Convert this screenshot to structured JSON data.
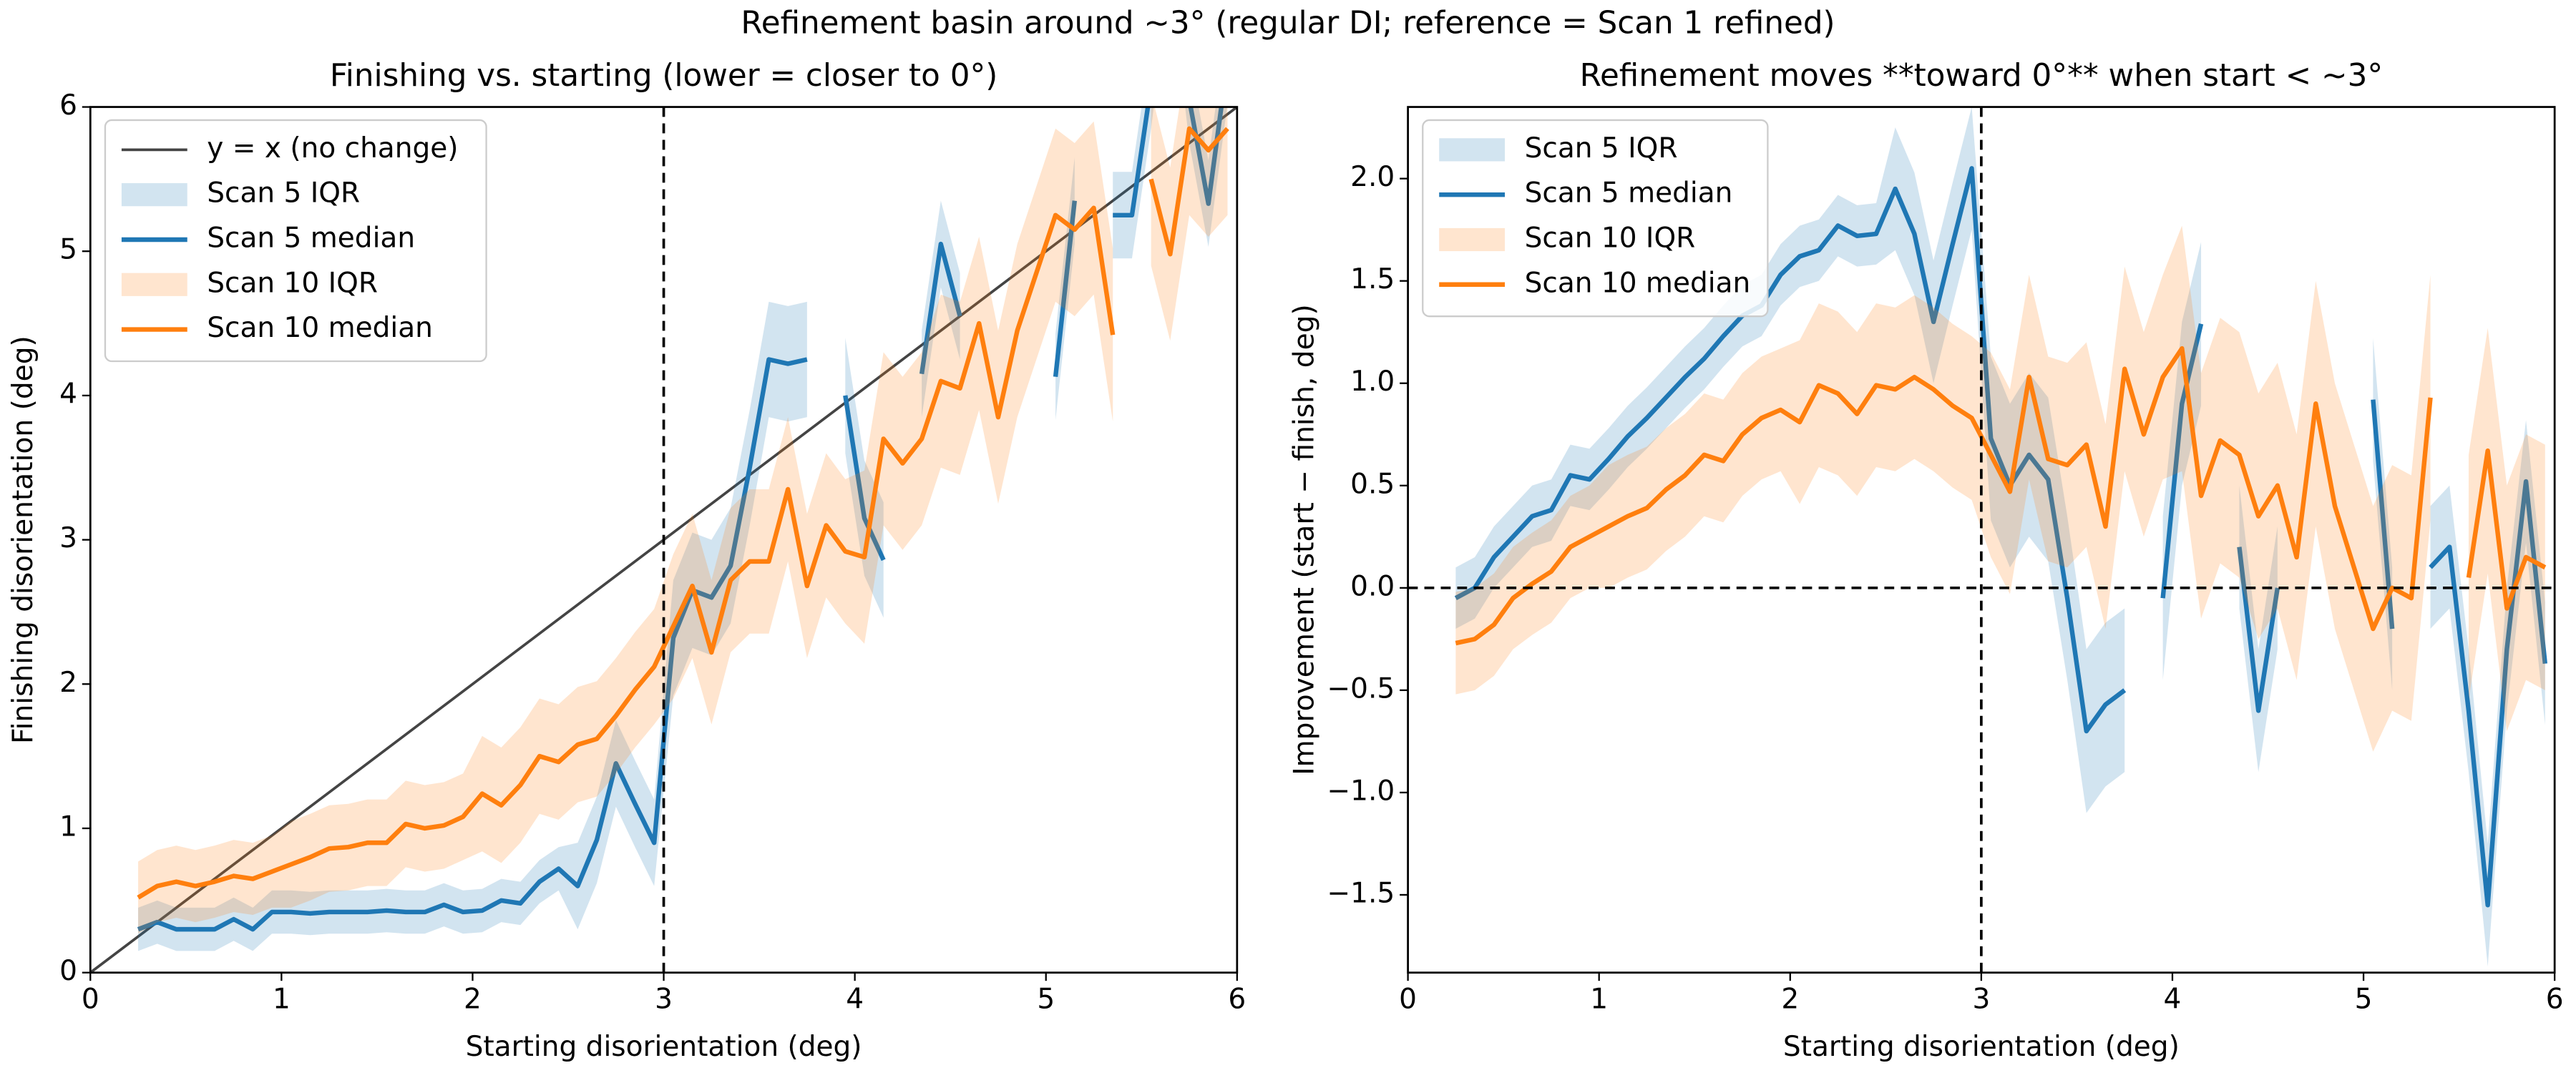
{
  "title": "Refinement basin around ~3° (regular DI; reference = Scan 1 refined)",
  "chart_data": [
    {
      "type": "line",
      "title": "Finishing vs. starting (lower = closer to 0°)",
      "xlabel": "Starting disorientation (deg)",
      "ylabel": "Finishing disorientation (deg)",
      "xlim": [
        0,
        6
      ],
      "ylim": [
        0,
        6
      ],
      "xticks": [
        0,
        1,
        2,
        3,
        4,
        5,
        6
      ],
      "yticks": [
        0,
        1,
        2,
        3,
        4,
        5,
        6
      ],
      "legend": "upper left",
      "vlines": [
        3
      ],
      "hlines": [],
      "x": [
        0.25,
        0.35,
        0.45,
        0.55,
        0.65,
        0.75,
        0.85,
        0.95,
        1.05,
        1.15,
        1.25,
        1.35,
        1.45,
        1.55,
        1.65,
        1.75,
        1.85,
        1.95,
        2.05,
        2.15,
        2.25,
        2.35,
        2.45,
        2.55,
        2.65,
        2.75,
        2.85,
        2.95,
        3.05,
        3.15,
        3.25,
        3.35,
        3.45,
        3.55,
        3.65,
        3.75,
        3.85,
        3.95,
        4.05,
        4.15,
        4.25,
        4.35,
        4.45,
        4.55,
        4.65,
        4.75,
        4.85,
        4.95,
        5.05,
        5.15,
        5.25,
        5.35,
        5.45,
        5.55,
        5.65,
        5.75,
        5.85,
        5.95
      ],
      "series": [
        {
          "name": "y = x (no change)",
          "color": "#444444",
          "x": [
            0,
            6
          ],
          "values": [
            0,
            6
          ]
        },
        {
          "name": "Scan 5 IQR",
          "kind": "band",
          "color": "#1f77b4",
          "low": [
            0.15,
            0.2,
            0.15,
            0.15,
            0.15,
            0.22,
            0.15,
            0.27,
            0.27,
            0.26,
            0.27,
            0.27,
            0.27,
            0.28,
            0.27,
            0.27,
            0.32,
            0.27,
            0.28,
            0.35,
            0.33,
            0.48,
            0.57,
            0.3,
            0.62,
            1.15,
            0.87,
            0.6,
            1.92,
            2.25,
            2.2,
            2.42,
            3.1,
            3.85,
            3.82,
            3.85,
            null,
            3.6,
            2.75,
            2.46,
            null,
            3.85,
            4.75,
            4.25,
            null,
            null,
            null,
            null,
            3.83,
            5.05,
            null,
            4.95,
            4.95,
            5.85,
            6.9,
            5.75,
            5.03,
            6.02
          ],
          "high": [
            0.45,
            0.5,
            0.45,
            0.45,
            0.45,
            0.52,
            0.45,
            0.57,
            0.57,
            0.56,
            0.57,
            0.57,
            0.57,
            0.58,
            0.57,
            0.57,
            0.62,
            0.57,
            0.58,
            0.65,
            0.63,
            0.78,
            0.87,
            0.9,
            1.22,
            1.75,
            1.47,
            1.2,
            2.72,
            3.05,
            3.0,
            3.22,
            3.9,
            4.65,
            4.62,
            4.65,
            null,
            4.4,
            3.55,
            3.26,
            null,
            4.45,
            5.35,
            4.85,
            null,
            null,
            null,
            null,
            4.43,
            5.65,
            null,
            5.55,
            5.55,
            6.45,
            7.5,
            6.35,
            5.63,
            6.62
          ]
        },
        {
          "name": "Scan 5 median",
          "color": "#1f77b4",
          "values": [
            0.3,
            0.35,
            0.3,
            0.3,
            0.3,
            0.37,
            0.3,
            0.42,
            0.42,
            0.41,
            0.42,
            0.42,
            0.42,
            0.43,
            0.42,
            0.42,
            0.47,
            0.42,
            0.43,
            0.5,
            0.48,
            0.63,
            0.72,
            0.6,
            0.92,
            1.45,
            1.17,
            0.9,
            2.32,
            2.65,
            2.6,
            2.82,
            3.5,
            4.25,
            4.22,
            4.25,
            null,
            4.0,
            3.15,
            2.86,
            null,
            4.15,
            5.05,
            4.55,
            null,
            null,
            null,
            null,
            4.13,
            5.35,
            null,
            5.25,
            5.25,
            6.15,
            7.2,
            6.05,
            5.33,
            6.32
          ]
        },
        {
          "name": "Scan 10 IQR",
          "kind": "band",
          "color": "#ff7f0e",
          "low": [
            0.27,
            0.35,
            0.38,
            0.35,
            0.38,
            0.42,
            0.4,
            0.45,
            0.45,
            0.5,
            0.56,
            0.57,
            0.6,
            0.6,
            0.73,
            0.7,
            0.72,
            0.78,
            0.84,
            0.76,
            0.9,
            1.1,
            1.06,
            1.18,
            1.22,
            1.38,
            1.56,
            1.72,
            1.9,
            2.18,
            1.72,
            2.22,
            2.35,
            2.35,
            2.85,
            2.18,
            2.6,
            2.42,
            2.28,
            3.1,
            2.93,
            3.1,
            3.5,
            3.45,
            3.9,
            3.25,
            3.85,
            4.25,
            4.65,
            4.55,
            4.7,
            3.82,
            null,
            4.9,
            4.38,
            5.25,
            5.1,
            5.25
          ],
          "high": [
            0.77,
            0.85,
            0.88,
            0.85,
            0.88,
            0.92,
            0.9,
            0.95,
            1.05,
            1.1,
            1.16,
            1.17,
            1.2,
            1.2,
            1.33,
            1.3,
            1.32,
            1.38,
            1.64,
            1.56,
            1.7,
            1.9,
            1.86,
            1.98,
            2.02,
            2.18,
            2.36,
            2.52,
            2.9,
            3.18,
            2.72,
            3.22,
            3.35,
            3.35,
            3.85,
            3.18,
            3.6,
            3.42,
            3.48,
            4.3,
            4.13,
            4.3,
            4.7,
            4.65,
            5.1,
            4.45,
            5.05,
            5.45,
            5.85,
            5.75,
            5.9,
            5.02,
            null,
            6.1,
            5.58,
            6.45,
            6.3,
            6.45
          ]
        },
        {
          "name": "Scan 10 median",
          "color": "#ff7f0e",
          "values": [
            0.52,
            0.6,
            0.63,
            0.6,
            0.63,
            0.67,
            0.65,
            0.7,
            0.75,
            0.8,
            0.86,
            0.87,
            0.9,
            0.9,
            1.03,
            1.0,
            1.02,
            1.08,
            1.24,
            1.16,
            1.3,
            1.5,
            1.46,
            1.58,
            1.62,
            1.78,
            1.96,
            2.12,
            2.4,
            2.68,
            2.22,
            2.72,
            2.85,
            2.85,
            3.35,
            2.68,
            3.1,
            2.92,
            2.88,
            3.7,
            3.53,
            3.7,
            4.1,
            4.05,
            4.5,
            3.85,
            4.45,
            4.85,
            5.25,
            5.15,
            5.3,
            4.42,
            null,
            5.5,
            4.98,
            5.85,
            5.7,
            5.85
          ]
        }
      ]
    },
    {
      "type": "line",
      "title": "Refinement moves **toward 0°** when start < ~3°",
      "xlabel": "Starting disorientation (deg)",
      "ylabel": "Improvement (start − finish, deg)",
      "xlim": [
        0,
        6
      ],
      "ylim": [
        -1.88,
        2.35
      ],
      "xticks": [
        0,
        1,
        2,
        3,
        4,
        5,
        6
      ],
      "yticks": [
        {
          "value": -1.5,
          "label": "−1.5"
        },
        {
          "value": -1,
          "label": "−1.0"
        },
        {
          "value": -0.5,
          "label": "−0.5"
        },
        {
          "value": 0,
          "label": "0.0"
        },
        0.5,
        {
          "value": 1,
          "label": "1.0"
        },
        1.5,
        {
          "value": 2,
          "label": "2.0"
        }
      ],
      "legend": "upper left",
      "vlines": [
        3
      ],
      "hlines": [
        0
      ],
      "x": [
        0.25,
        0.35,
        0.45,
        0.55,
        0.65,
        0.75,
        0.85,
        0.95,
        1.05,
        1.15,
        1.25,
        1.35,
        1.45,
        1.55,
        1.65,
        1.75,
        1.85,
        1.95,
        2.05,
        2.15,
        2.25,
        2.35,
        2.45,
        2.55,
        2.65,
        2.75,
        2.85,
        2.95,
        3.05,
        3.15,
        3.25,
        3.35,
        3.45,
        3.55,
        3.65,
        3.75,
        3.85,
        3.95,
        4.05,
        4.15,
        4.25,
        4.35,
        4.45,
        4.55,
        4.65,
        4.75,
        4.85,
        4.95,
        5.05,
        5.15,
        5.25,
        5.35,
        5.45,
        5.55,
        5.65,
        5.75,
        5.85,
        5.95
      ],
      "series": [
        {
          "name": "Scan 5 IQR",
          "kind": "band",
          "color": "#1f77b4",
          "low": [
            -0.2,
            -0.15,
            0,
            0.1,
            0.2,
            0.23,
            0.4,
            0.38,
            0.48,
            0.59,
            0.68,
            0.78,
            0.88,
            0.97,
            1.08,
            1.18,
            1.23,
            1.38,
            1.47,
            1.5,
            1.62,
            1.57,
            1.58,
            1.65,
            1.43,
            1.0,
            1.38,
            1.75,
            0.33,
            0.1,
            0.25,
            0.13,
            -0.45,
            -1.1,
            -0.97,
            -0.9,
            null,
            -0.45,
            0.5,
            0.89,
            null,
            -0.1,
            -0.9,
            -0.3,
            null,
            null,
            null,
            null,
            0.62,
            -0.5,
            null,
            -0.2,
            -0.1,
            -0.9,
            -1.85,
            -0.6,
            0.22,
            -0.67
          ],
          "high": [
            0.1,
            0.15,
            0.3,
            0.4,
            0.5,
            0.53,
            0.7,
            0.68,
            0.78,
            0.89,
            0.98,
            1.08,
            1.18,
            1.27,
            1.38,
            1.48,
            1.53,
            1.68,
            1.77,
            1.8,
            1.92,
            1.87,
            1.88,
            2.25,
            2.03,
            1.6,
            1.98,
            2.35,
            1.13,
            0.9,
            1.05,
            0.93,
            0.35,
            -0.3,
            -0.17,
            -0.1,
            null,
            0.35,
            1.3,
            1.69,
            null,
            0.5,
            -0.3,
            0.3,
            null,
            null,
            null,
            null,
            1.22,
            0.1,
            null,
            0.4,
            0.5,
            -0.3,
            -1.25,
            0,
            0.82,
            -0.07
          ]
        },
        {
          "name": "Scan 5 median",
          "color": "#1f77b4",
          "values": [
            -0.05,
            0,
            0.15,
            0.25,
            0.35,
            0.38,
            0.55,
            0.53,
            0.63,
            0.74,
            0.83,
            0.93,
            1.03,
            1.12,
            1.23,
            1.33,
            1.38,
            1.53,
            1.62,
            1.65,
            1.77,
            1.72,
            1.73,
            1.95,
            1.73,
            1.3,
            1.68,
            2.05,
            0.73,
            0.5,
            0.65,
            0.53,
            -0.05,
            -0.7,
            -0.57,
            -0.5,
            null,
            -0.05,
            0.9,
            1.29,
            null,
            0.2,
            -0.6,
            0,
            null,
            null,
            null,
            null,
            0.92,
            -0.2,
            null,
            0.1,
            0.2,
            -0.6,
            -1.55,
            -0.3,
            0.52,
            -0.37
          ]
        },
        {
          "name": "Scan 10 IQR",
          "kind": "band",
          "color": "#ff7f0e",
          "low": [
            -0.52,
            -0.5,
            -0.43,
            -0.3,
            -0.23,
            -0.17,
            -0.05,
            0,
            0,
            0.05,
            0.09,
            0.18,
            0.25,
            0.35,
            0.32,
            0.45,
            0.53,
            0.57,
            0.41,
            0.59,
            0.55,
            0.45,
            0.59,
            0.57,
            0.63,
            0.57,
            0.49,
            0.43,
            0.15,
            -0.03,
            0.53,
            0.13,
            0.1,
            0.2,
            -0.2,
            0.57,
            0.25,
            0.53,
            0.57,
            -0.15,
            0.12,
            0.05,
            -0.25,
            -0.1,
            -0.45,
            0.3,
            -0.2,
            -0.5,
            -0.8,
            -0.6,
            -0.65,
            0.33,
            null,
            -0.55,
            0.07,
            -0.7,
            -0.45,
            -0.5
          ],
          "high": [
            -0.02,
            0,
            0.07,
            0.2,
            0.27,
            0.33,
            0.45,
            0.5,
            0.6,
            0.65,
            0.69,
            0.78,
            0.85,
            0.95,
            0.92,
            1.05,
            1.13,
            1.17,
            1.21,
            1.39,
            1.35,
            1.25,
            1.39,
            1.37,
            1.43,
            1.37,
            1.29,
            1.23,
            1.15,
            0.97,
            1.53,
            1.13,
            1.1,
            1.2,
            0.8,
            1.57,
            1.25,
            1.53,
            1.77,
            1.05,
            1.32,
            1.25,
            0.95,
            1.1,
            0.75,
            1.5,
            1.0,
            0.7,
            0.4,
            0.6,
            0.55,
            1.53,
            null,
            0.65,
            1.27,
            0.5,
            0.75,
            0.7
          ]
        },
        {
          "name": "Scan 10 median",
          "color": "#ff7f0e",
          "values": [
            -0.27,
            -0.25,
            -0.18,
            -0.05,
            0.02,
            0.08,
            0.2,
            0.25,
            0.3,
            0.35,
            0.39,
            0.48,
            0.55,
            0.65,
            0.62,
            0.75,
            0.83,
            0.87,
            0.81,
            0.99,
            0.95,
            0.85,
            0.99,
            0.97,
            1.03,
            0.97,
            0.89,
            0.83,
            0.65,
            0.47,
            1.03,
            0.63,
            0.6,
            0.7,
            0.3,
            1.07,
            0.75,
            1.03,
            1.17,
            0.45,
            0.72,
            0.65,
            0.35,
            0.5,
            0.15,
            0.9,
            0.4,
            0.1,
            -0.2,
            0,
            -0.05,
            0.93,
            null,
            0.05,
            0.67,
            -0.1,
            0.15,
            0.1
          ]
        }
      ]
    }
  ]
}
